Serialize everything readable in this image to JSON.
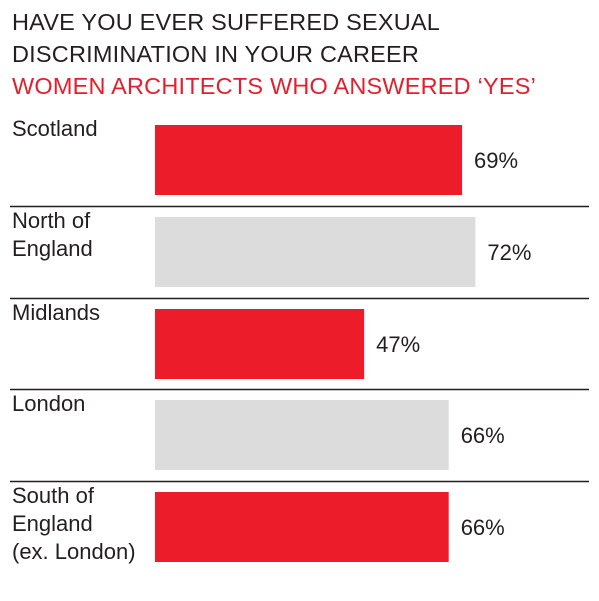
{
  "header": {
    "title_line1": "HAVE YOU EVER SUFFERED SEXUAL",
    "title_line2": "DISCRIMINATION IN YOUR CAREER",
    "subtitle": "WOMEN ARCHITECTS WHO ANSWERED ‘YES’"
  },
  "chart_data": {
    "type": "bar",
    "orientation": "horizontal",
    "title": "HAVE YOU EVER SUFFERED SEXUAL DISCRIMINATION IN YOUR CAREER",
    "subtitle": "WOMEN ARCHITECTS WHO ANSWERED ‘YES’",
    "categories": [
      [
        "Scotland"
      ],
      [
        "North of",
        "England"
      ],
      [
        "Midlands"
      ],
      [
        "London"
      ],
      [
        "South of",
        "England",
        "(ex. London)"
      ]
    ],
    "values": [
      69,
      72,
      47,
      66,
      66
    ],
    "value_labels": [
      "69%",
      "72%",
      "47%",
      "66%",
      "66%"
    ],
    "unit": "%",
    "xlim": [
      0,
      100
    ],
    "grid": false,
    "colors": {
      "highlight": "#ec1c2b",
      "muted": "#dcdcdd",
      "separator": "#231f20"
    },
    "bar_colors": [
      "highlight",
      "muted",
      "highlight",
      "muted",
      "highlight"
    ]
  }
}
